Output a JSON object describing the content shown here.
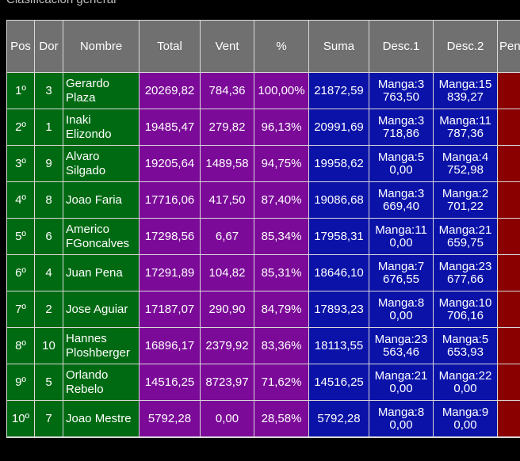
{
  "caption": "Clasificación general",
  "headers": [
    "Pos",
    "Dor",
    "Nombre",
    "Total",
    "Vent",
    "%",
    "Suma",
    "Desc.1",
    "Desc.2",
    "Pen"
  ],
  "rows": [
    {
      "pos": "1º",
      "dor": "3",
      "name": "Gerardo Plaza",
      "total": "20269,82",
      "vent": "784,36",
      "pct": "100,00%",
      "suma": "21872,59",
      "d1a": "Manga:3",
      "d1b": "763,50",
      "d2a": "Manga:15",
      "d2b": "839,27"
    },
    {
      "pos": "2º",
      "dor": "1",
      "name": "Inaki Elizondo",
      "total": "19485,47",
      "vent": "279,82",
      "pct": "96,13%",
      "suma": "20991,69",
      "d1a": "Manga:3",
      "d1b": "718,86",
      "d2a": "Manga:11",
      "d2b": "787,36"
    },
    {
      "pos": "3º",
      "dor": "9",
      "name": "Alvaro Silgado",
      "total": "19205,64",
      "vent": "1489,58",
      "pct": "94,75%",
      "suma": "19958,62",
      "d1a": "Manga:5",
      "d1b": "0,00",
      "d2a": "Manga:4",
      "d2b": "752,98"
    },
    {
      "pos": "4º",
      "dor": "8",
      "name": "Joao Faria",
      "total": "17716,06",
      "vent": "417,50",
      "pct": "87,40%",
      "suma": "19086,68",
      "d1a": "Manga:3",
      "d1b": "669,40",
      "d2a": "Manga:2",
      "d2b": "701,22"
    },
    {
      "pos": "5º",
      "dor": "6",
      "name": "Americo FGoncalves",
      "total": "17298,56",
      "vent": "6,67",
      "pct": "85,34%",
      "suma": "17958,31",
      "d1a": "Manga:11",
      "d1b": "0,00",
      "d2a": "Manga:21",
      "d2b": "659,75"
    },
    {
      "pos": "6º",
      "dor": "4",
      "name": "Juan Pena",
      "total": "17291,89",
      "vent": "104,82",
      "pct": "85,31%",
      "suma": "18646,10",
      "d1a": "Manga:7",
      "d1b": "676,55",
      "d2a": "Manga:23",
      "d2b": "677,66"
    },
    {
      "pos": "7º",
      "dor": "2",
      "name": "Jose Aguiar",
      "total": "17187,07",
      "vent": "290,90",
      "pct": "84,79%",
      "suma": "17893,23",
      "d1a": "Manga:8",
      "d1b": "0,00",
      "d2a": "Manga:10",
      "d2b": "706,16"
    },
    {
      "pos": "8º",
      "dor": "10",
      "name": "Hannes Ploshberger",
      "total": "16896,17",
      "vent": "2379,92",
      "pct": "83,36%",
      "suma": "18113,55",
      "d1a": "Manga:23",
      "d1b": "563,46",
      "d2a": "Manga:5",
      "d2b": "653,93"
    },
    {
      "pos": "9º",
      "dor": "5",
      "name": "Orlando Rebelo",
      "total": "14516,25",
      "vent": "8723,97",
      "pct": "71,62%",
      "suma": "14516,25",
      "d1a": "Manga:21",
      "d1b": "0,00",
      "d2a": "Manga:22",
      "d2b": "0,00"
    },
    {
      "pos": "10º",
      "dor": "7",
      "name": "Joao Mestre",
      "total": "5792,28",
      "vent": "0,00",
      "pct": "28,58%",
      "suma": "5792,28",
      "d1a": "Manga:8",
      "d1b": "0,00",
      "d2a": "Manga:9",
      "d2b": "0,00"
    }
  ],
  "colors": {
    "header_bg": "#707070",
    "green": "#006a12",
    "purple": "#7b0a98",
    "blue": "#0b12a8",
    "red": "#8a0000"
  }
}
